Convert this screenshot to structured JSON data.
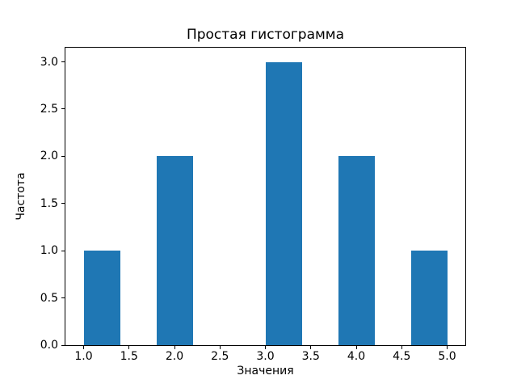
{
  "chart_data": {
    "type": "bar",
    "variant": "histogram",
    "title": "Простая гистограмма",
    "xlabel": "Значения",
    "ylabel": "Частота",
    "bin_edges": [
      1.0,
      1.4,
      1.8,
      2.2,
      2.6,
      3.0,
      3.4,
      3.8,
      4.2,
      4.6,
      5.0
    ],
    "counts": [
      1,
      0,
      2,
      0,
      0,
      3,
      0,
      2,
      0,
      1
    ],
    "xlim": [
      0.8,
      5.2
    ],
    "ylim": [
      0,
      3.15
    ],
    "x_tick_labels": [
      "1.0",
      "1.5",
      "2.0",
      "2.5",
      "3.0",
      "3.5",
      "4.0",
      "4.5",
      "5.0"
    ],
    "y_tick_labels": [
      "0.0",
      "0.5",
      "1.0",
      "1.5",
      "2.0",
      "2.5",
      "3.0"
    ],
    "bar_color": "#1f77b4",
    "axis_color": "#000000",
    "background_color": "#ffffff",
    "grid": false,
    "legend": false
  }
}
